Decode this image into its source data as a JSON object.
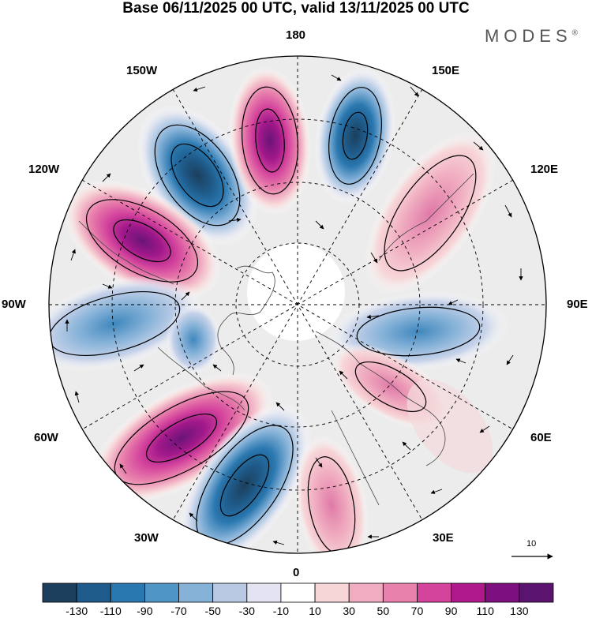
{
  "title": "Base 06/11/2025 00 UTC, valid 13/11/2025 00 UTC",
  "brand": "MODES",
  "brand_mark": "®",
  "longitude_labels": {
    "top": "180",
    "bottom": "0",
    "upper_left": "150W",
    "upper_right": "150E",
    "left_upper": "120W",
    "right_upper": "120E",
    "left": "90W",
    "right": "90E",
    "left_lower": "60W",
    "right_lower": "60E",
    "lower_left": "30W",
    "lower_right": "30E"
  },
  "reference_vector": "10",
  "colorbar": {
    "ticks": [
      "-130",
      "-110",
      "-90",
      "-70",
      "-50",
      "-30",
      "-10",
      "10",
      "30",
      "50",
      "70",
      "90",
      "110",
      "130"
    ],
    "colors": [
      "#1b3f5c",
      "#1f5b8a",
      "#2a78b0",
      "#4f95c6",
      "#86b2d8",
      "#b9c9e4",
      "#e3e3f1",
      "#ffffff",
      "#f7d6d8",
      "#f0acc0",
      "#e881ac",
      "#d4449d",
      "#b0198c",
      "#7e0f7f",
      "#5a1470"
    ]
  }
}
